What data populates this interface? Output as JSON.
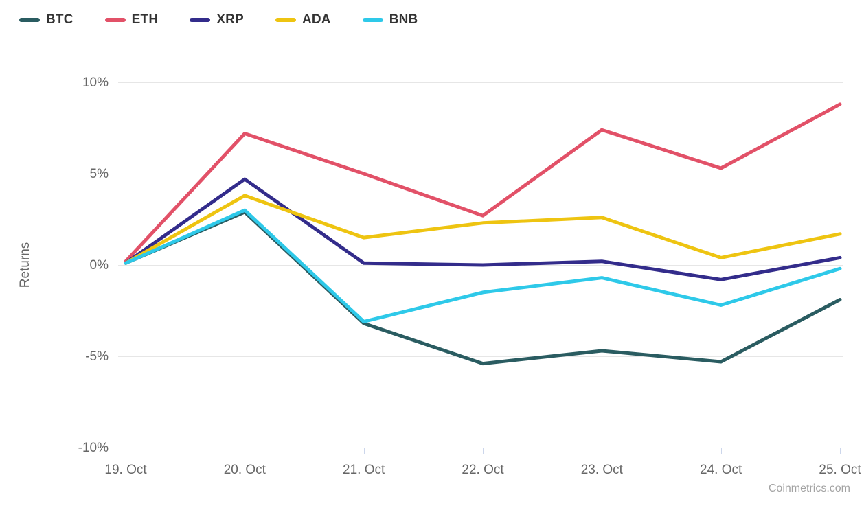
{
  "legend": {
    "items": [
      {
        "label": "BTC",
        "color": "#2a5c61"
      },
      {
        "label": "ETH",
        "color": "#e25168"
      },
      {
        "label": "XRP",
        "color": "#332c8b"
      },
      {
        "label": "ADA",
        "color": "#eec411"
      },
      {
        "label": "BNB",
        "color": "#2ec9e9"
      }
    ]
  },
  "credits": "Coinmetrics.com",
  "chart_data": {
    "type": "line",
    "title": "",
    "xlabel": "",
    "ylabel": "Returns",
    "categories": [
      "19. Oct",
      "20. Oct",
      "21. Oct",
      "22. Oct",
      "23. Oct",
      "24. Oct",
      "25. Oct"
    ],
    "series": [
      {
        "name": "BTC",
        "color": "#2a5c61",
        "values": [
          0.1,
          2.9,
          -3.2,
          -5.4,
          -4.7,
          -5.3,
          -1.9
        ]
      },
      {
        "name": "ETH",
        "color": "#e25168",
        "values": [
          0.2,
          7.2,
          5.0,
          2.7,
          7.4,
          5.3,
          8.8
        ]
      },
      {
        "name": "XRP",
        "color": "#332c8b",
        "values": [
          0.1,
          4.7,
          0.1,
          0.0,
          0.2,
          -0.8,
          0.4
        ]
      },
      {
        "name": "ADA",
        "color": "#eec411",
        "values": [
          0.1,
          3.8,
          1.5,
          2.3,
          2.6,
          0.4,
          1.7
        ]
      },
      {
        "name": "BNB",
        "color": "#2ec9e9",
        "values": [
          0.1,
          3.0,
          -3.1,
          -1.5,
          -0.7,
          -2.2,
          -0.2
        ]
      }
    ],
    "yticks": [
      {
        "value": 10,
        "label": "10%"
      },
      {
        "value": 5,
        "label": "5%"
      },
      {
        "value": 0,
        "label": "0%"
      },
      {
        "value": -5,
        "label": "-5%"
      },
      {
        "value": -10,
        "label": "-10%"
      }
    ],
    "ylim": [
      -10,
      10
    ],
    "grid": true,
    "legend_position": "top-left",
    "line_width": 5,
    "colors": {
      "grid": "#e6e6e6",
      "axis": "#ccd6eb",
      "tick_label": "#666666",
      "legend_text": "#333333",
      "credits": "#a3a3a3"
    }
  }
}
